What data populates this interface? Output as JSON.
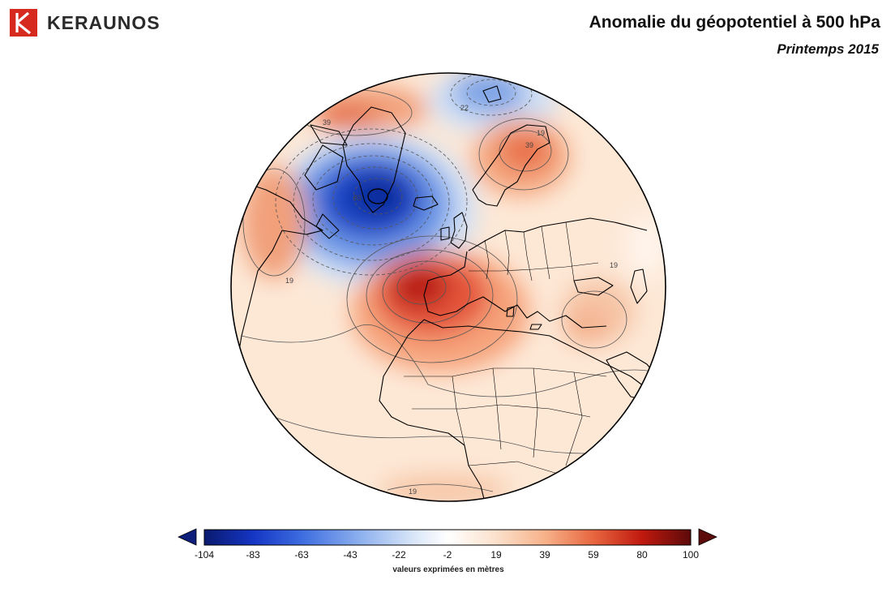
{
  "brand": {
    "name": "KERAUNOS",
    "mark_color": "#d62a1e"
  },
  "header": {
    "title": "Anomalie du géopotentiel à 500 hPa",
    "subtitle": "Printemps 2015"
  },
  "map": {
    "projection": "orthographic",
    "region": "Atlantique Nord / Europe / Afrique",
    "contour_labels": [
      "39",
      "22",
      "19",
      "39",
      "83",
      "19",
      "19",
      "19"
    ]
  },
  "colorbar": {
    "ticks": [
      "-104",
      "-83",
      "-63",
      "-43",
      "-22",
      "-2",
      "19",
      "39",
      "59",
      "80",
      "100"
    ],
    "note": "valeurs exprimées en mètres",
    "colors": [
      "#0a1a6e",
      "#1535c4",
      "#3d6de0",
      "#8db0ee",
      "#d9e6f8",
      "#ffffff",
      "#fbe1cc",
      "#f7b28a",
      "#e7663f",
      "#c0190f",
      "#5c0a0a"
    ]
  }
}
